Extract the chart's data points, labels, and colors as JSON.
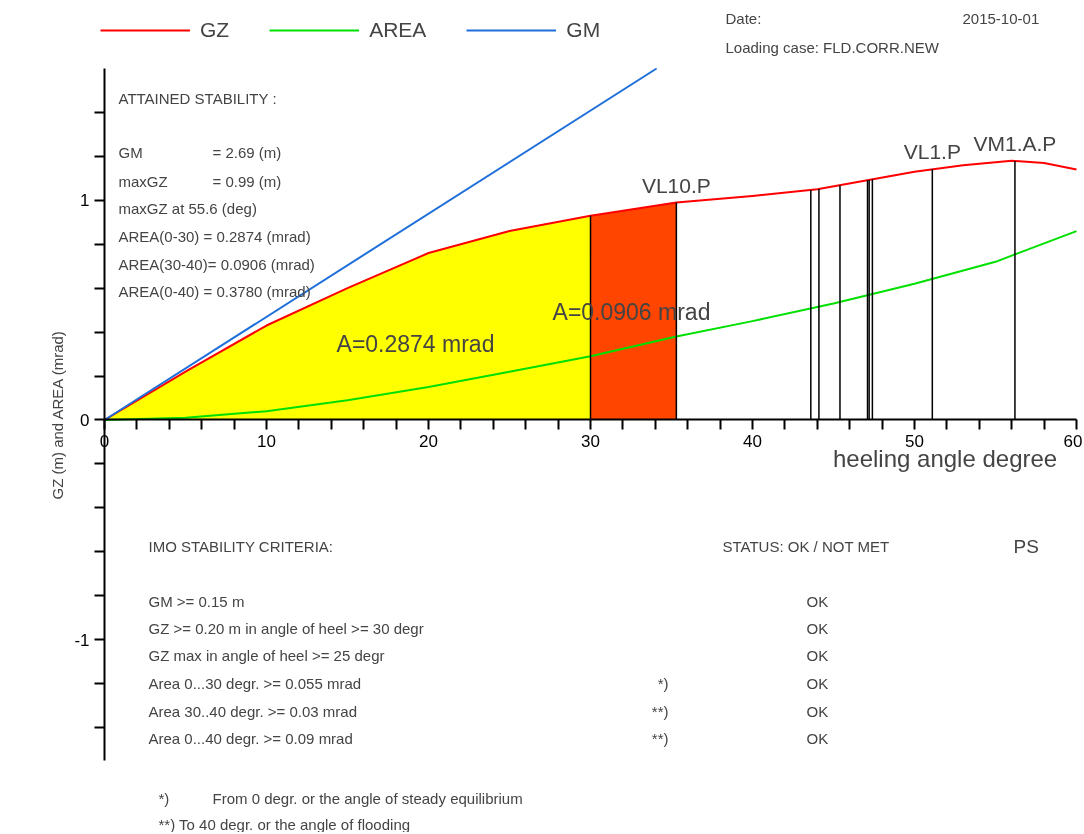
{
  "chart_data": {
    "type": "line",
    "xlabel": "heeling angle   degree",
    "ylabel": "GZ (m) and AREA (mrad)",
    "xlim": [
      0,
      60
    ],
    "ylim": [
      -1.55,
      1.6
    ],
    "xticks": [
      0,
      {
        "value": 2,
        "label": null
      },
      {
        "value": 4,
        "label": null
      },
      {
        "value": 6,
        "label": null
      },
      {
        "value": 8,
        "label": null
      },
      10,
      {
        "value": 12,
        "label": null
      },
      {
        "value": 14,
        "label": null
      },
      {
        "value": 16,
        "label": null
      },
      {
        "value": 18,
        "label": null
      },
      20,
      {
        "value": 22,
        "label": null
      },
      {
        "value": 24,
        "label": null
      },
      {
        "value": 26,
        "label": null
      },
      {
        "value": 28,
        "label": null
      },
      30,
      {
        "value": 32,
        "label": null
      },
      {
        "value": 34,
        "label": null
      },
      {
        "value": 36,
        "label": null
      },
      {
        "value": 38,
        "label": null
      },
      40,
      {
        "value": 42,
        "label": null
      },
      {
        "value": 44,
        "label": null
      },
      {
        "value": 46,
        "label": null
      },
      {
        "value": 48,
        "label": null
      },
      50,
      {
        "value": 52,
        "label": null
      },
      {
        "value": 54,
        "label": null
      },
      {
        "value": 56,
        "label": null
      },
      {
        "value": 58,
        "label": null
      },
      60
    ],
    "yticks": [
      {
        "value": -1.4,
        "label": null
      },
      {
        "value": -1.2,
        "label": null
      },
      -1,
      {
        "value": -0.8,
        "label": null
      },
      {
        "value": -0.6,
        "label": null
      },
      {
        "value": -0.4,
        "label": null
      },
      {
        "value": -0.2,
        "label": null
      },
      0,
      {
        "value": 0.2,
        "label": null
      },
      {
        "value": 0.4,
        "label": null
      },
      {
        "value": 0.6,
        "label": null
      },
      {
        "value": 0.8,
        "label": null
      },
      1,
      {
        "value": 1.2,
        "label": null
      },
      {
        "value": 1.4,
        "label": null
      }
    ],
    "grid": false,
    "legend": "top",
    "series": [
      {
        "type": "area",
        "color": "#ffff00",
        "x": [
          0,
          5,
          10,
          15,
          20,
          25,
          30
        ],
        "values": [
          0,
          0.22,
          0.43,
          0.6,
          0.76,
          0.86,
          0.93
        ]
      },
      {
        "type": "area",
        "color": "#ff4500",
        "x": [
          30,
          35.3
        ],
        "values": [
          0.93,
          0.99
        ]
      },
      {
        "name": "GZ",
        "color": "#ff0000",
        "x": [
          0,
          5,
          10,
          15,
          20,
          25,
          30,
          35.3,
          40,
          44,
          47,
          50,
          53,
          56,
          58,
          60
        ],
        "values": [
          0,
          0.22,
          0.43,
          0.6,
          0.76,
          0.86,
          0.93,
          0.99,
          1.02,
          1.05,
          1.09,
          1.13,
          1.16,
          1.18,
          1.17,
          1.14
        ]
      },
      {
        "name": "AREA",
        "color": "#00e000",
        "x": [
          0,
          5,
          10,
          15,
          20,
          25,
          30,
          35.3,
          40,
          45,
          50,
          55,
          60
        ],
        "values": [
          0,
          0.01,
          0.04,
          0.09,
          0.15,
          0.22,
          0.29,
          0.38,
          0.45,
          0.53,
          0.62,
          0.72,
          0.86
        ]
      },
      {
        "name": "GM",
        "color": "#1e6fd9",
        "x": [
          0,
          34.08
        ],
        "values": [
          0,
          1.6
        ]
      }
    ],
    "ref_lines": [
      {
        "axis": "x",
        "value": 30,
        "label": null
      },
      {
        "axis": "x",
        "value": 35.3,
        "label": "VL10.P"
      },
      {
        "axis": "x",
        "value": 43.6,
        "label": null
      },
      {
        "axis": "x",
        "value": 44.1,
        "label": null
      },
      {
        "axis": "x",
        "value": 45.4,
        "label": null
      },
      {
        "axis": "x",
        "value": 47.1,
        "label": null
      },
      {
        "axis": "x",
        "value": 47.2,
        "label": null
      },
      {
        "axis": "x",
        "value": 47.4,
        "label": null
      },
      {
        "axis": "x",
        "value": 51.1,
        "label": "VL1.P"
      },
      {
        "axis": "x",
        "value": 56.2,
        "label": "VM1.A.P"
      }
    ],
    "annotations": [
      "A=0.2874 mrad",
      "A=0.0906 mrad",
      "Date:",
      "2015-10-01",
      "Loading case: FLD.CORR.NEW",
      "ATTAINED STABILITY :",
      "GM",
      "= 2.69 (m)",
      "maxGZ",
      "= 0.99 (m)",
      "maxGZ at 55.6 (deg)",
      "AREA(0-30) = 0.2874 (mrad)",
      "AREA(30-40)= 0.0906 (mrad)",
      "AREA(0-40) = 0.3780 (mrad)",
      "IMO STABILITY CRITERIA:",
      "STATUS: OK / NOT MET",
      "PS",
      "GM >= 0.15 m",
      "GZ >= 0.20 m in angle of heel >= 30 degr",
      "GZ max in angle of heel >= 25 degr",
      "Area 0...30 degr. >= 0.055 mrad",
      "Area 30..40 degr. >= 0.03 mrad",
      "Area 0...40 degr. >= 0.09 mrad",
      "*)",
      "**)",
      "**)",
      "OK",
      "OK",
      "OK",
      "OK",
      "OK",
      "OK",
      "*)",
      "From 0 degr. or the angle of steady equilibrium",
      "**) To 40 degr. or the angle of flooding"
    ]
  }
}
